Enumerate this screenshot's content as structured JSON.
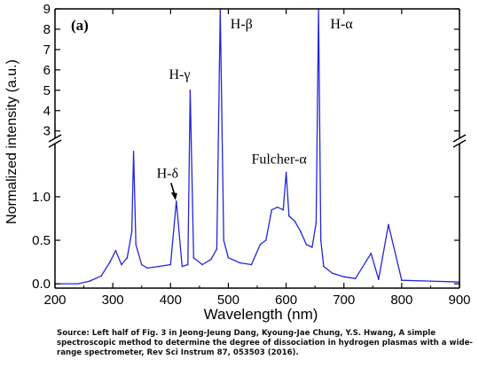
{
  "chart_data": {
    "type": "line",
    "panel_label": "(a)",
    "xlabel": "Wavelength (nm)",
    "ylabel": "Normalized intensity (a.u.)",
    "xlim": [
      200,
      900
    ],
    "x_ticks": [
      "200",
      "300",
      "400",
      "500",
      "600",
      "700",
      "800",
      "900"
    ],
    "y_lower_range": [
      -0.05,
      1.55
    ],
    "y_lower_ticks": [
      "0.0",
      "0.5",
      "1.0"
    ],
    "y_upper_range": [
      2.9,
      9
    ],
    "y_upper_ticks": [
      "3",
      "4",
      "5",
      "6",
      "7",
      "8",
      "9"
    ],
    "axis_break": true,
    "line_color": "#2525d9",
    "annotations": [
      {
        "text": "H-δ",
        "x": 410,
        "y": 0.95,
        "arrow": true
      },
      {
        "text": "H-γ",
        "x": 434,
        "y": 5.0
      },
      {
        "text": "H-β",
        "x": 486,
        "y": 9.0
      },
      {
        "text": "H-α",
        "x": 656,
        "y": 9.0
      },
      {
        "text": "Fulcher-α",
        "x": 600,
        "y": 1.3
      }
    ],
    "series": [
      {
        "x": [
          200,
          240,
          260,
          280,
          295,
          305,
          315,
          325,
          333,
          336,
          340,
          350,
          360,
          380,
          400,
          410,
          420,
          430,
          434,
          440,
          455,
          470,
          480,
          486,
          492,
          500,
          520,
          540,
          555,
          565,
          575,
          585,
          595,
          600,
          605,
          615,
          625,
          635,
          645,
          652,
          656,
          660,
          665,
          680,
          700,
          720,
          747,
          760,
          777,
          800,
          850,
          900
        ],
        "y": [
          0.0,
          0.0,
          0.03,
          0.09,
          0.25,
          0.38,
          0.22,
          0.3,
          0.6,
          1.52,
          0.45,
          0.22,
          0.18,
          0.2,
          0.22,
          0.95,
          0.2,
          0.22,
          5.0,
          0.3,
          0.22,
          0.28,
          0.4,
          9.0,
          0.5,
          0.3,
          0.24,
          0.22,
          0.45,
          0.5,
          0.85,
          0.88,
          0.85,
          1.28,
          0.78,
          0.72,
          0.6,
          0.45,
          0.42,
          0.7,
          9.0,
          0.5,
          0.2,
          0.12,
          0.08,
          0.06,
          0.35,
          0.05,
          0.68,
          0.04,
          0.03,
          0.02
        ]
      }
    ]
  },
  "caption": "Source: Left half of Fig. 3 in Jeong-Jeung Dang, Kyoung-Jae Chung, Y.S. Hwang, A simple spectroscopic method to determine the degree of dissociation in hydrogen plasmas with a wide-range spectrometer, Rev Sci Instrum 87, 053503 (2016)."
}
